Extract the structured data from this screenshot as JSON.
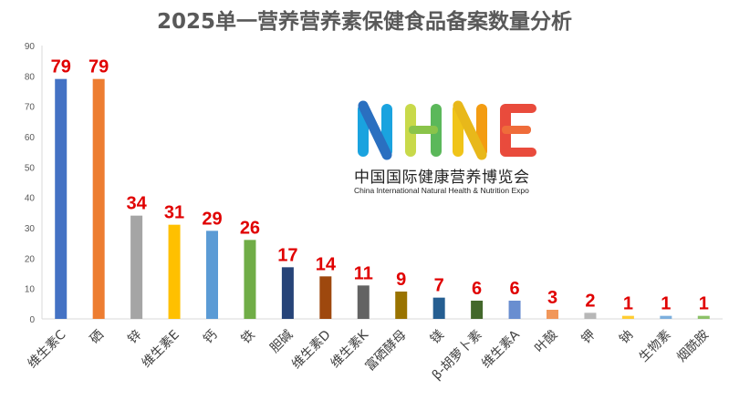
{
  "chart_data": {
    "type": "bar",
    "title": "2025单一营养营养素保健食品备案数量分析",
    "categories": [
      "维生素C",
      "硒",
      "锌",
      "维生素E",
      "钙",
      "铁",
      "胆碱",
      "维生素D",
      "维生素K",
      "富硒酵母",
      "镁",
      "β-胡萝卜素",
      "维生素A",
      "叶酸",
      "钾",
      "钠",
      "生物素",
      "烟酰胺"
    ],
    "values": [
      79,
      79,
      34,
      31,
      29,
      26,
      17,
      14,
      11,
      9,
      7,
      6,
      6,
      3,
      2,
      1,
      1,
      1
    ],
    "bar_colors": [
      "#4472C4",
      "#ED7D31",
      "#A5A5A5",
      "#FFC000",
      "#5B9BD5",
      "#70AD47",
      "#264478",
      "#9E480E",
      "#636363",
      "#997300",
      "#255E91",
      "#43682B",
      "#698ED0",
      "#F1975A",
      "#B7B7B7",
      "#FFCD33",
      "#7CAFDD",
      "#8CC168"
    ],
    "label_color": "#E00000",
    "ylim": [
      0,
      90
    ],
    "yticks": [
      0,
      10,
      20,
      30,
      40,
      50,
      60,
      70,
      80,
      90
    ],
    "grid": false
  },
  "logo": {
    "name": "NHNE",
    "cn": "中国国际健康营养博览会",
    "en": "China International Natural Health & Nutrition Expo"
  }
}
